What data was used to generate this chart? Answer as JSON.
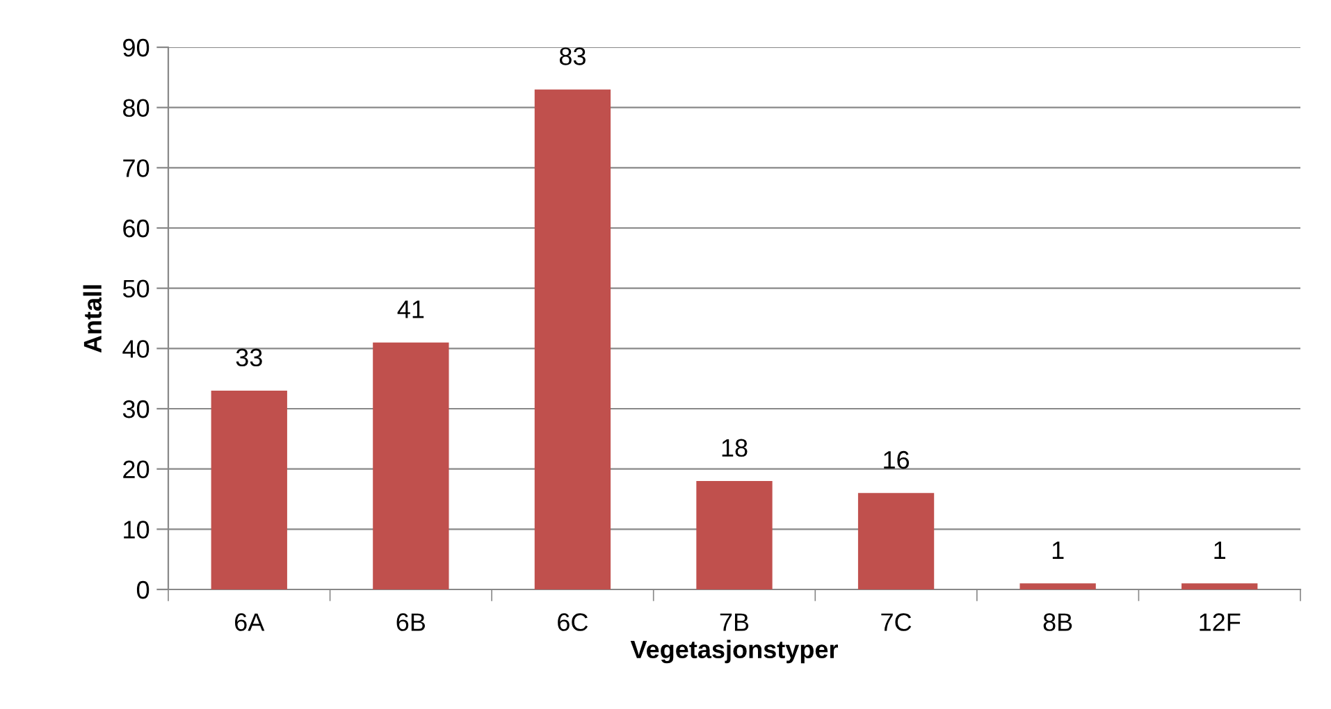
{
  "chart_data": {
    "type": "bar",
    "xlabel": "Vegetasjonstyper",
    "ylabel": "Antall",
    "categories": [
      "6A",
      "6B",
      "6C",
      "7B",
      "7C",
      "8B",
      "12F"
    ],
    "values": [
      33,
      41,
      83,
      18,
      16,
      1,
      1
    ],
    "color": "#c0504d",
    "ylim": [
      0,
      90
    ],
    "yticks": [
      0,
      10,
      20,
      30,
      40,
      50,
      60,
      70,
      80,
      90
    ],
    "grid": "y",
    "data_labels": true,
    "legend": false
  }
}
